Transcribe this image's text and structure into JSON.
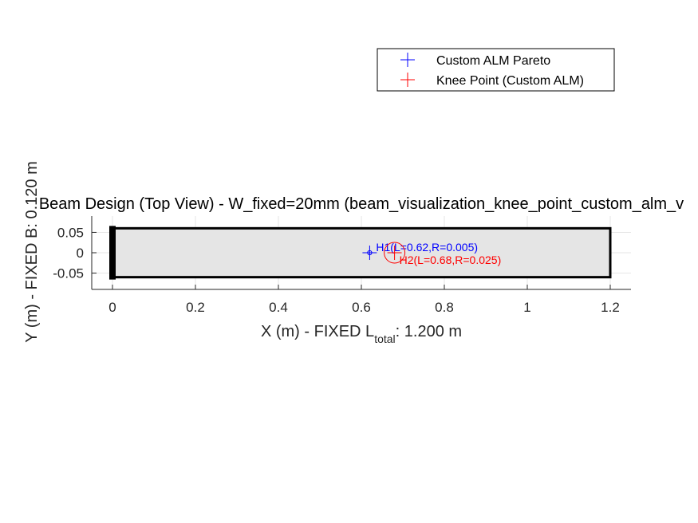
{
  "chart_data": {
    "type": "scatter",
    "title": "Beam Design (Top View) - W_fixed=20mm (beam_visualization_knee_point_custom_alm_v",
    "xlabel": {
      "main": "X (m) - FIXED L",
      "sub": "total",
      "tail": ": 1.200 m"
    },
    "ylabel": "Y (m) - FIXED B: 0.120 m",
    "xlim": [
      -0.05,
      1.25
    ],
    "ylim": [
      -0.09,
      0.09
    ],
    "x_ticks": [
      0,
      0.2,
      0.4,
      0.6,
      0.8,
      1,
      1.2
    ],
    "x_tick_labels": [
      "0",
      "0.2",
      "0.4",
      "0.6",
      "0.8",
      "1",
      "1.2"
    ],
    "y_ticks": [
      -0.05,
      0,
      0.05
    ],
    "y_tick_labels": [
      "-0.05",
      "0",
      "0.05"
    ],
    "grid": true,
    "legend_position": "top-right, outside axes",
    "beam": {
      "x": [
        0,
        1.2
      ],
      "y": [
        -0.06,
        0.06
      ],
      "fill": "#e5e5e5",
      "edge": "#000000",
      "fixed_end_x": 0
    },
    "series": [
      {
        "name": "Custom ALM Pareto",
        "marker": "+",
        "color": "#0000ff",
        "points": [
          {
            "x": 0.62,
            "y": 0
          }
        ]
      },
      {
        "name": "Knee Point (Custom ALM)",
        "marker": "+",
        "color": "#ff0000",
        "points": [
          {
            "x": 0.68,
            "y": 0
          }
        ]
      }
    ],
    "holes": [
      {
        "label": "H1(L=0.62,R=0.005)",
        "x": 0.62,
        "y": 0,
        "r": 0.005,
        "color": "#0000ff"
      },
      {
        "label": "H2(L=0.68,R=0.025)",
        "x": 0.68,
        "y": 0,
        "r": 0.025,
        "color": "#ff0000"
      }
    ]
  }
}
